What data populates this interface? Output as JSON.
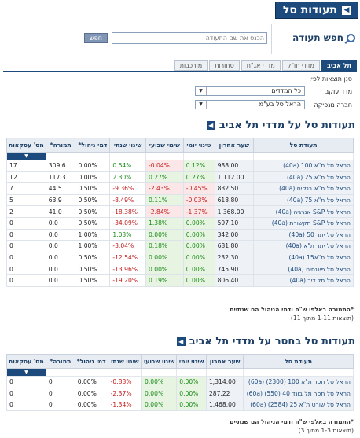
{
  "page": {
    "title": "תעודות סל"
  },
  "search": {
    "title": "חפש תעודה",
    "placeholder": "הכנס את שם התעודה",
    "button_label": "חפש"
  },
  "tabs": [
    {
      "label": "תל אביב",
      "active": true
    },
    {
      "label": "מדדי חו\"ל",
      "active": false
    },
    {
      "label": "מדדי אג\"ח",
      "active": false
    },
    {
      "label": "סחורות",
      "active": false
    },
    {
      "label": "מורכבות",
      "active": false
    }
  ],
  "filters": {
    "label": "סנן תוצאות לפי:",
    "index_label": "מדד עוקב",
    "index_value": "כל המדדים",
    "issuer_label": "חברה מנפיקה",
    "issuer_value": "הראל סל בע\"מ"
  },
  "columns": [
    "תעודת סל",
    "שער אחרון",
    "שינוי יומי",
    "שינוי שבועי",
    "שינוי שנתי",
    "דמי ניהול*",
    "תמורה*",
    "מס' עסקאות"
  ],
  "table1": {
    "title": "תעודות סל על מדדי תל אביב",
    "rows": [
      {
        "name": "הראל סל ת\"א 100 (40a)",
        "last": "988.00",
        "daily": "0.12%",
        "weekly": "-0.04%",
        "yearly": "0.54%",
        "fee": "0.00%",
        "turnover": "309.6",
        "trades": "17"
      },
      {
        "name": "הראל סל ת\"א 25 (40a)",
        "last": "1,112.00",
        "daily": "0.27%",
        "weekly": "0.27%",
        "yearly": "2.30%",
        "fee": "0.00%",
        "turnover": "117.3",
        "trades": "12"
      },
      {
        "name": "הראל סל ת\"א בנקים (40a)",
        "last": "832.50",
        "daily": "-0.45%",
        "weekly": "-2.43%",
        "yearly": "-9.36%",
        "fee": "0.50%",
        "turnover": "44.5",
        "trades": "7"
      },
      {
        "name": "הראל סל ת\"א 75 (40a)",
        "last": "618.80",
        "daily": "-0.03%",
        "weekly": "0.11%",
        "yearly": "-8.49%",
        "fee": "0.50%",
        "turnover": "63.9",
        "trades": "5"
      },
      {
        "name": "הראל סל S&P אנרגיה (40a)",
        "last": "1,368.00",
        "daily": "-1.37%",
        "weekly": "-2.84%",
        "yearly": "-18.38%",
        "fee": "0.50%",
        "turnover": "41.0",
        "trades": "2"
      },
      {
        "name": "הראל סל S&P תקשורת (40a)",
        "last": "597.10",
        "daily": "0.00%",
        "weekly": "1.38%",
        "yearly": "-34.09%",
        "fee": "0.50%",
        "turnover": "0.0",
        "trades": "0"
      },
      {
        "name": "הראל סל יתר 50 (40a)",
        "last": "342.00",
        "daily": "0.00%",
        "weekly": "0.00%",
        "yearly": "1.03%",
        "fee": "1.00%",
        "turnover": "0.0",
        "trades": "0"
      },
      {
        "name": "הראל סל יתר ת\"א (40a)",
        "last": "681.80",
        "daily": "0.00%",
        "weekly": "0.18%",
        "yearly": "-3.04%",
        "fee": "1.00%",
        "turnover": "0.0",
        "trades": "0"
      },
      {
        "name": "הראל סל ת\"א15 (40a)",
        "last": "232.30",
        "daily": "0.00%",
        "weekly": "0.00%",
        "yearly": "-12.54%",
        "fee": "0.50%",
        "turnover": "0.0",
        "trades": "0"
      },
      {
        "name": "הראל סל פיננסים (40a)",
        "last": "745.90",
        "daily": "0.00%",
        "weekly": "0.00%",
        "yearly": "-13.96%",
        "fee": "0.50%",
        "turnover": "0.0",
        "trades": "0"
      },
      {
        "name": "הראל סל תל דיב (40a)",
        "last": "806.40",
        "daily": "0.00%",
        "weekly": "0.19%",
        "yearly": "-19.20%",
        "fee": "0.50%",
        "turnover": "0.0",
        "trades": "0"
      }
    ],
    "note": "*התמורה באלפי ש\"ח ודמי הניהול הם שנתיים",
    "count": "(תוצאות 1-11 מתוך 11)"
  },
  "table2": {
    "title": "תעודות סל בחסר על מדדי תל אביב",
    "rows": [
      {
        "name": "הראל סל חסר ת\"א 100 (2300) (60a)",
        "last": "1,314.00",
        "daily": "0.00%",
        "weekly": "0.00%",
        "yearly": "-0.83%",
        "fee": "0.00%",
        "turnover": "0",
        "trades": "0"
      },
      {
        "name": "הראל סל חסר תל בונד 40 (550) (60a)",
        "last": "287.22",
        "daily": "0.00%",
        "weekly": "0.00%",
        "yearly": "-2.37%",
        "fee": "0.00%",
        "turnover": "0",
        "trades": "0"
      },
      {
        "name": "הראל סל שורט ת\"א 25 (2584) (60a)",
        "last": "1,468.00",
        "daily": "0.00%",
        "weekly": "0.00%",
        "yearly": "-1.34%",
        "fee": "0.00%",
        "turnover": "0",
        "trades": "0"
      }
    ],
    "note": "*התמורה באלפי ש\"ח ודמי הניהול הם שנתיים",
    "count": "(תוצאות 1-3 מתוך 3)"
  }
}
